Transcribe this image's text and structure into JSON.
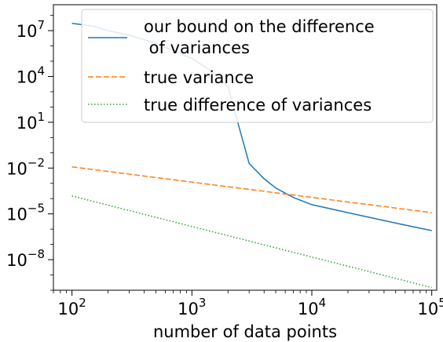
{
  "chart_data": {
    "type": "line",
    "xlabel": "number of data points",
    "ylabel": "",
    "x_scale": "log",
    "y_scale": "log",
    "xlim": [
      70,
      110000
    ],
    "ylim": [
      1e-10,
      500000000.0
    ],
    "x_ticks": [
      {
        "value": 100,
        "base": "10",
        "exp": "2"
      },
      {
        "value": 1000,
        "base": "10",
        "exp": "3"
      },
      {
        "value": 10000,
        "base": "10",
        "exp": "4"
      },
      {
        "value": 100000,
        "base": "10",
        "exp": "5"
      }
    ],
    "y_ticks": [
      {
        "value": 1e-08,
        "base": "10",
        "exp": "−8"
      },
      {
        "value": 1e-05,
        "base": "10",
        "exp": "−5"
      },
      {
        "value": 0.01,
        "base": "10",
        "exp": "−2"
      },
      {
        "value": 10,
        "base": "10",
        "exp": "1"
      },
      {
        "value": 10000,
        "base": "10",
        "exp": "4"
      },
      {
        "value": 10000000.0,
        "base": "10",
        "exp": "7"
      }
    ],
    "legend_position": "top-right",
    "series": [
      {
        "name": "our bound on the difference\n of variances",
        "color": "#1f77b4",
        "style": "solid",
        "x": [
          100,
          150,
          200,
          300,
          500,
          700,
          1000,
          1500,
          2000,
          3000,
          4000,
          5000,
          7000,
          10000,
          20000,
          50000,
          100000
        ],
        "y": [
          30000000.0,
          20000000.0,
          10000000.0,
          5000000.0,
          1500000.0,
          500000.0,
          150000.0,
          20000.0,
          2000,
          0.02,
          0.002,
          0.0005,
          0.00012,
          4e-05,
          1.2e-05,
          2.5e-06,
          8e-07
        ]
      },
      {
        "name": "true variance",
        "color": "#ff7f0e",
        "style": "dashed",
        "x": [
          100,
          100000
        ],
        "y": [
          0.012,
          1.2e-05
        ]
      },
      {
        "name": "true difference of variances",
        "color": "#2ca02c",
        "style": "dotted",
        "x": [
          100,
          100000
        ],
        "y": [
          0.00015,
          1.5e-10
        ]
      }
    ]
  }
}
